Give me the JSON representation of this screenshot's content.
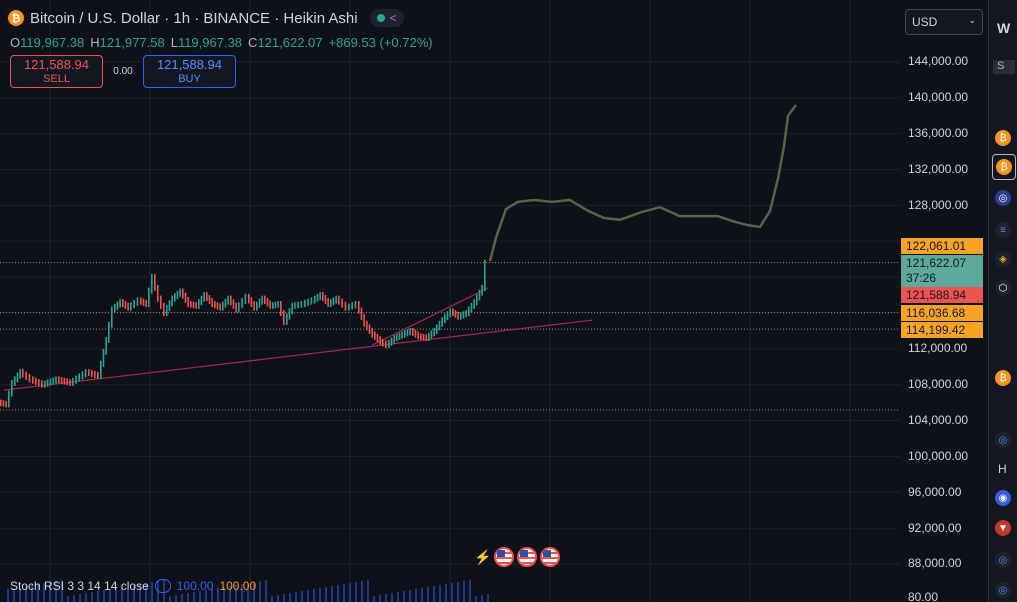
{
  "header": {
    "title": "Bitcoin / U.S. Dollar · 1h · BINANCE · Heikin Ashi",
    "ohlc": {
      "o_label": "O",
      "o": "119,967.38",
      "h_label": "H",
      "h": "121,977.58",
      "l_label": "L",
      "l": "119,967.38",
      "c_label": "C",
      "c": "121,622.07",
      "change": "+869.53 (+0.72%)"
    }
  },
  "trade": {
    "sell_price": "121,588.94",
    "sell_label": "SELL",
    "spread": "0.00",
    "buy_price": "121,588.94",
    "buy_label": "BUY"
  },
  "currency": {
    "value": "USD"
  },
  "price_axis": {
    "labels": [
      "144,000.00",
      "140,000.00",
      "136,000.00",
      "132,000.00",
      "128,000.00",
      "112,000.00",
      "108,000.00",
      "104,000.00",
      "100,000.00",
      "96,000.00",
      "92,000.00",
      "88,000.00",
      "80.00"
    ],
    "tags": {
      "high": "122,061.01",
      "last": "121,622.07",
      "countdown": "37:26",
      "bid": "121,588.94",
      "level1": "116,036.68",
      "level2": "114,199.42"
    }
  },
  "indicator": {
    "name": "Stoch RSI 3 3 14 14 close",
    "k": "100.00",
    "d": "100.00"
  },
  "watchlist": {
    "header_letter": "W",
    "items": [
      "S",
      "H"
    ]
  },
  "colors": {
    "up": "#26a69a",
    "down": "#ef5350",
    "accent": "#2962ff",
    "projection": "#5c6148",
    "trendline": "#9c2a4f"
  },
  "chart_data": {
    "type": "line",
    "title": "Bitcoin / U.S. Dollar · 1h · BINANCE · Heikin Ashi",
    "ylim": [
      86000,
      146000
    ],
    "price_points": [
      [
        0,
        106000
      ],
      [
        8,
        105800
      ],
      [
        14,
        108200
      ],
      [
        22,
        109400
      ],
      [
        32,
        108600
      ],
      [
        44,
        108000
      ],
      [
        58,
        108600
      ],
      [
        72,
        108200
      ],
      [
        88,
        109400
      ],
      [
        100,
        109000
      ],
      [
        108,
        113000
      ],
      [
        114,
        116400
      ],
      [
        122,
        117200
      ],
      [
        130,
        116600
      ],
      [
        140,
        117400
      ],
      [
        148,
        117000
      ],
      [
        154,
        120000
      ],
      [
        160,
        117600
      ],
      [
        166,
        116000
      ],
      [
        174,
        117600
      ],
      [
        182,
        118400
      ],
      [
        190,
        117000
      ],
      [
        198,
        116800
      ],
      [
        206,
        118000
      ],
      [
        214,
        117000
      ],
      [
        222,
        116600
      ],
      [
        230,
        117600
      ],
      [
        238,
        116400
      ],
      [
        248,
        117800
      ],
      [
        256,
        116600
      ],
      [
        264,
        117600
      ],
      [
        272,
        116800
      ],
      [
        280,
        117000
      ],
      [
        286,
        115000
      ],
      [
        294,
        116800
      ],
      [
        304,
        117000
      ],
      [
        314,
        117400
      ],
      [
        322,
        118000
      ],
      [
        330,
        117000
      ],
      [
        338,
        117600
      ],
      [
        348,
        116600
      ],
      [
        358,
        117000
      ],
      [
        366,
        114800
      ],
      [
        374,
        113600
      ],
      [
        382,
        112800
      ],
      [
        388,
        112400
      ],
      [
        396,
        113200
      ],
      [
        404,
        113600
      ],
      [
        412,
        114000
      ],
      [
        420,
        113400
      ],
      [
        428,
        113200
      ],
      [
        436,
        114000
      ],
      [
        444,
        115200
      ],
      [
        452,
        116200
      ],
      [
        460,
        115600
      ],
      [
        468,
        116000
      ],
      [
        476,
        117200
      ],
      [
        484,
        118800
      ],
      [
        488,
        121600
      ]
    ],
    "projection_points": [
      [
        490,
        121800
      ],
      [
        496,
        124400
      ],
      [
        506,
        127600
      ],
      [
        518,
        128400
      ],
      [
        534,
        128600
      ],
      [
        552,
        128400
      ],
      [
        570,
        128600
      ],
      [
        588,
        127400
      ],
      [
        604,
        126600
      ],
      [
        620,
        126400
      ],
      [
        640,
        127200
      ],
      [
        660,
        127800
      ],
      [
        680,
        126800
      ],
      [
        700,
        126800
      ],
      [
        718,
        126800
      ],
      [
        734,
        126200
      ],
      [
        748,
        125800
      ],
      [
        760,
        125600
      ],
      [
        770,
        127400
      ],
      [
        778,
        131000
      ],
      [
        784,
        134600
      ],
      [
        788,
        138000
      ],
      [
        796,
        139200
      ]
    ],
    "trendline": {
      "from": [
        4,
        107400
      ],
      "to": [
        592,
        115200
      ]
    },
    "trendline2": {
      "from": [
        372,
        112400
      ],
      "to": [
        488,
        118800
      ]
    }
  }
}
